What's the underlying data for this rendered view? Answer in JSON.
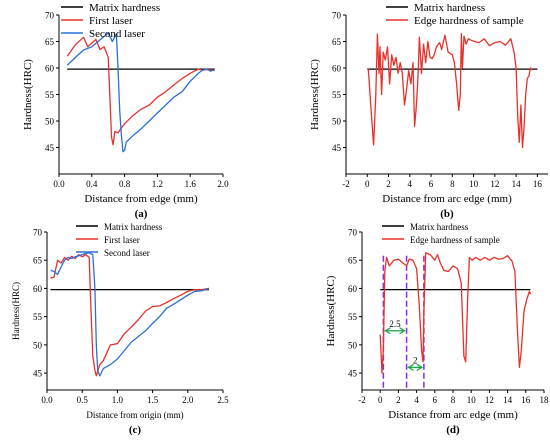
{
  "chart_data": [
    {
      "panel_label": "(a)",
      "type": "line",
      "xlabel": "Distance from edge (mm)",
      "ylabel": "Hardness(HRC)",
      "xlim": [
        0,
        2.0
      ],
      "ylim": [
        40,
        70
      ],
      "xticks": [
        "0.0",
        "0.4",
        "0.8",
        "1.2",
        "1.6",
        "2.0"
      ],
      "yticks": [
        "45",
        "50",
        "55",
        "60",
        "65",
        "70"
      ],
      "legend": "top-right",
      "series": [
        {
          "name": "Matrix hardness",
          "color": "#000000",
          "x": [
            0.1,
            1.9
          ],
          "y": [
            59.8,
            59.8
          ]
        },
        {
          "name": "First laser",
          "color": "#e8302a",
          "x": [
            0.1,
            0.2,
            0.3,
            0.35,
            0.45,
            0.5,
            0.55,
            0.6,
            0.62,
            0.64,
            0.66,
            0.68,
            0.72,
            0.8,
            0.9,
            1.0,
            1.1,
            1.2,
            1.3,
            1.4,
            1.5,
            1.6,
            1.7,
            1.75,
            1.8,
            1.9
          ],
          "y": [
            62.2,
            64.4,
            65.8,
            64.0,
            65.4,
            63.5,
            64.0,
            62.0,
            55.0,
            47.0,
            45.5,
            48.0,
            47.8,
            49.5,
            51.0,
            52.2,
            53.0,
            54.5,
            55.5,
            56.8,
            58.0,
            59.0,
            59.8,
            59.6,
            59.7,
            59.6
          ]
        },
        {
          "name": "Second laser",
          "color": "#2b6fd6",
          "x": [
            0.1,
            0.2,
            0.3,
            0.4,
            0.5,
            0.6,
            0.65,
            0.7,
            0.72,
            0.74,
            0.76,
            0.78,
            0.8,
            0.82,
            0.9,
            1.0,
            1.1,
            1.2,
            1.3,
            1.4,
            1.5,
            1.6,
            1.7,
            1.75,
            1.8,
            1.85,
            1.9
          ],
          "y": [
            60.5,
            62.0,
            63.4,
            64.0,
            65.3,
            66.6,
            65.0,
            66.4,
            60.0,
            52.0,
            47.5,
            44.2,
            44.5,
            46.0,
            47.2,
            48.5,
            50.0,
            51.5,
            53.0,
            54.5,
            55.5,
            57.5,
            59.0,
            59.6,
            59.8,
            59.4,
            59.7
          ]
        }
      ]
    },
    {
      "panel_label": "(b)",
      "type": "line",
      "xlabel": "Distance from arc edge (mm)",
      "ylabel": "Hardness(HRC)",
      "xlim": [
        -2,
        17
      ],
      "ylim": [
        40,
        70
      ],
      "xticks": [
        "-2",
        "0",
        "2",
        "4",
        "6",
        "8",
        "10",
        "12",
        "14",
        "16"
      ],
      "yticks": [
        "45",
        "50",
        "55",
        "60",
        "65",
        "70"
      ],
      "legend": "top-right",
      "series": [
        {
          "name": "Matrix hardness",
          "color": "#000000",
          "x": [
            0,
            16
          ],
          "y": [
            59.8,
            59.8
          ]
        },
        {
          "name": "Edge hardness of sample",
          "color": "#e8302a",
          "x": [
            0.1,
            0.4,
            0.6,
            0.8,
            0.95,
            1.1,
            1.2,
            1.35,
            1.5,
            1.7,
            1.9,
            2.1,
            2.3,
            2.5,
            2.7,
            2.9,
            3.1,
            3.3,
            3.5,
            3.7,
            3.9,
            4.1,
            4.3,
            4.45,
            4.6,
            4.75,
            4.9,
            5.1,
            5.3,
            5.5,
            5.7,
            5.9,
            6.1,
            6.3,
            6.5,
            6.8,
            7.0,
            7.3,
            7.6,
            8.0,
            8.2,
            8.4,
            8.6,
            8.75,
            8.85,
            8.95,
            9.1,
            9.3,
            9.5,
            9.8,
            10.1,
            10.5,
            11.0,
            11.5,
            12.0,
            12.5,
            13.0,
            13.5,
            13.8,
            14.0,
            14.15,
            14.3,
            14.45,
            14.6,
            14.75,
            14.9,
            15.05,
            15.2,
            15.35,
            15.5
          ],
          "y": [
            59.8,
            51.0,
            45.5,
            55.0,
            66.4,
            59.0,
            64.0,
            55.0,
            63.0,
            61.5,
            64.0,
            57.0,
            62.5,
            60.5,
            62.0,
            59.0,
            61.0,
            59.0,
            53.0,
            56.0,
            59.5,
            57.0,
            61.0,
            49.0,
            52.5,
            57.5,
            65.8,
            59.0,
            64.5,
            61.0,
            65.0,
            62.0,
            61.8,
            62.5,
            64.0,
            64.8,
            63.5,
            66.2,
            63.0,
            62.5,
            61.0,
            57.0,
            52.0,
            55.0,
            66.5,
            60.0,
            66.0,
            64.5,
            65.5,
            65.2,
            65.0,
            64.8,
            65.5,
            64.2,
            64.8,
            65.0,
            64.3,
            65.5,
            63.0,
            60.0,
            51.0,
            46.0,
            53.0,
            45.0,
            49.0,
            55.0,
            58.0,
            58.5,
            60.0,
            59.6
          ]
        }
      ]
    },
    {
      "panel_label": "(c)",
      "type": "line",
      "xlabel": "Distance from origin (mm)",
      "ylabel": "Hardness(HRC)",
      "xlim": [
        0,
        2.5
      ],
      "ylim": [
        42,
        70
      ],
      "xticks": [
        "0.0",
        "0.5",
        "1.0",
        "1.5",
        "2.0",
        "2.5"
      ],
      "yticks": [
        "45",
        "50",
        "55",
        "60",
        "65",
        "70"
      ],
      "legend": "top-right",
      "series": [
        {
          "name": "Matrix hardness",
          "color": "#000000",
          "x": [
            0.05,
            2.3
          ],
          "y": [
            59.8,
            59.8
          ]
        },
        {
          "name": "First laser",
          "color": "#e8302a",
          "x": [
            0.05,
            0.1,
            0.15,
            0.2,
            0.25,
            0.3,
            0.35,
            0.4,
            0.45,
            0.5,
            0.55,
            0.6,
            0.62,
            0.65,
            0.68,
            0.7,
            0.75,
            0.8,
            0.9,
            1.0,
            1.1,
            1.2,
            1.3,
            1.4,
            1.5,
            1.6,
            1.7,
            1.8,
            1.9,
            2.0,
            2.1,
            2.2,
            2.3
          ],
          "y": [
            61.8,
            62.0,
            65.0,
            64.5,
            65.5,
            65.0,
            65.7,
            65.3,
            66.0,
            65.6,
            66.0,
            65.5,
            58.0,
            48.0,
            45.5,
            44.5,
            46.5,
            47.2,
            50.0,
            50.2,
            52.0,
            53.2,
            54.5,
            56.0,
            56.8,
            56.9,
            57.5,
            58.2,
            58.8,
            59.5,
            59.8,
            59.8,
            60.0
          ]
        },
        {
          "name": "Second laser",
          "color": "#2b6fd6",
          "x": [
            0.05,
            0.1,
            0.15,
            0.2,
            0.25,
            0.3,
            0.35,
            0.4,
            0.45,
            0.5,
            0.55,
            0.6,
            0.65,
            0.68,
            0.7,
            0.72,
            0.75,
            0.8,
            0.9,
            1.0,
            1.1,
            1.2,
            1.3,
            1.4,
            1.5,
            1.6,
            1.7,
            1.8,
            1.9,
            2.0,
            2.1,
            2.2,
            2.3
          ],
          "y": [
            63.2,
            63.0,
            62.5,
            63.8,
            65.0,
            65.5,
            65.3,
            65.6,
            65.8,
            66.0,
            66.2,
            66.3,
            66.0,
            60.0,
            50.0,
            45.5,
            44.5,
            45.8,
            46.5,
            47.5,
            49.0,
            50.5,
            51.5,
            52.5,
            53.8,
            55.0,
            56.5,
            57.2,
            58.0,
            58.8,
            59.5,
            59.6,
            60.0
          ]
        }
      ]
    },
    {
      "panel_label": "(d)",
      "type": "line",
      "xlabel": "Distance from arc edge (mm)",
      "ylabel": "Hardness(HRC)",
      "xlim": [
        -2,
        18
      ],
      "ylim": [
        42,
        70
      ],
      "xticks": [
        "-2",
        "0",
        "2",
        "4",
        "6",
        "8",
        "10",
        "12",
        "14",
        "16",
        "18"
      ],
      "yticks": [
        "45",
        "50",
        "55",
        "60",
        "65",
        "70"
      ],
      "legend": "top-right",
      "series": [
        {
          "name": "Matrix hardness",
          "color": "#000000",
          "x": [
            0,
            16.5
          ],
          "y": [
            59.8,
            59.8
          ]
        },
        {
          "name": "Edge hardness of sample",
          "color": "#e8302a",
          "x": [
            0.0,
            0.2,
            0.35,
            0.5,
            0.7,
            1.0,
            1.5,
            2.0,
            2.5,
            2.9,
            3.2,
            3.6,
            4.0,
            4.3,
            4.55,
            4.7,
            4.8,
            5.0,
            5.5,
            6.0,
            6.3,
            6.6,
            7.0,
            7.5,
            8.0,
            8.5,
            8.9,
            9.2,
            9.4,
            9.6,
            9.8,
            10.1,
            10.5,
            11.0,
            11.5,
            12.0,
            12.5,
            13.0,
            13.5,
            14.0,
            14.5,
            14.8,
            15.1,
            15.3,
            15.5,
            15.8,
            16.1,
            16.4,
            16.5
          ],
          "y": [
            51.8,
            45.0,
            49.5,
            63.0,
            65.5,
            64.0,
            65.0,
            65.2,
            64.5,
            64.0,
            65.2,
            65.0,
            63.5,
            57.0,
            49.0,
            47.0,
            56.0,
            66.3,
            66.0,
            65.0,
            66.0,
            64.5,
            63.2,
            63.0,
            64.0,
            63.5,
            61.0,
            48.0,
            47.0,
            58.0,
            65.5,
            65.0,
            65.5,
            65.0,
            65.5,
            65.0,
            65.5,
            65.2,
            65.3,
            65.8,
            64.8,
            63.0,
            52.0,
            46.0,
            49.0,
            56.0,
            58.0,
            59.5,
            59.0
          ]
        }
      ],
      "annotations": [
        {
          "text": "2.5",
          "x1": 0.35,
          "x2": 2.9,
          "y": 52.5,
          "color": "#1aa64a"
        },
        {
          "text": "2",
          "x1": 2.9,
          "x2": 4.8,
          "y": 46.0,
          "color": "#1aa64a"
        }
      ],
      "guide_lines_x": [
        0.35,
        2.9,
        4.8
      ],
      "guide_color": "#8a2be2"
    }
  ]
}
